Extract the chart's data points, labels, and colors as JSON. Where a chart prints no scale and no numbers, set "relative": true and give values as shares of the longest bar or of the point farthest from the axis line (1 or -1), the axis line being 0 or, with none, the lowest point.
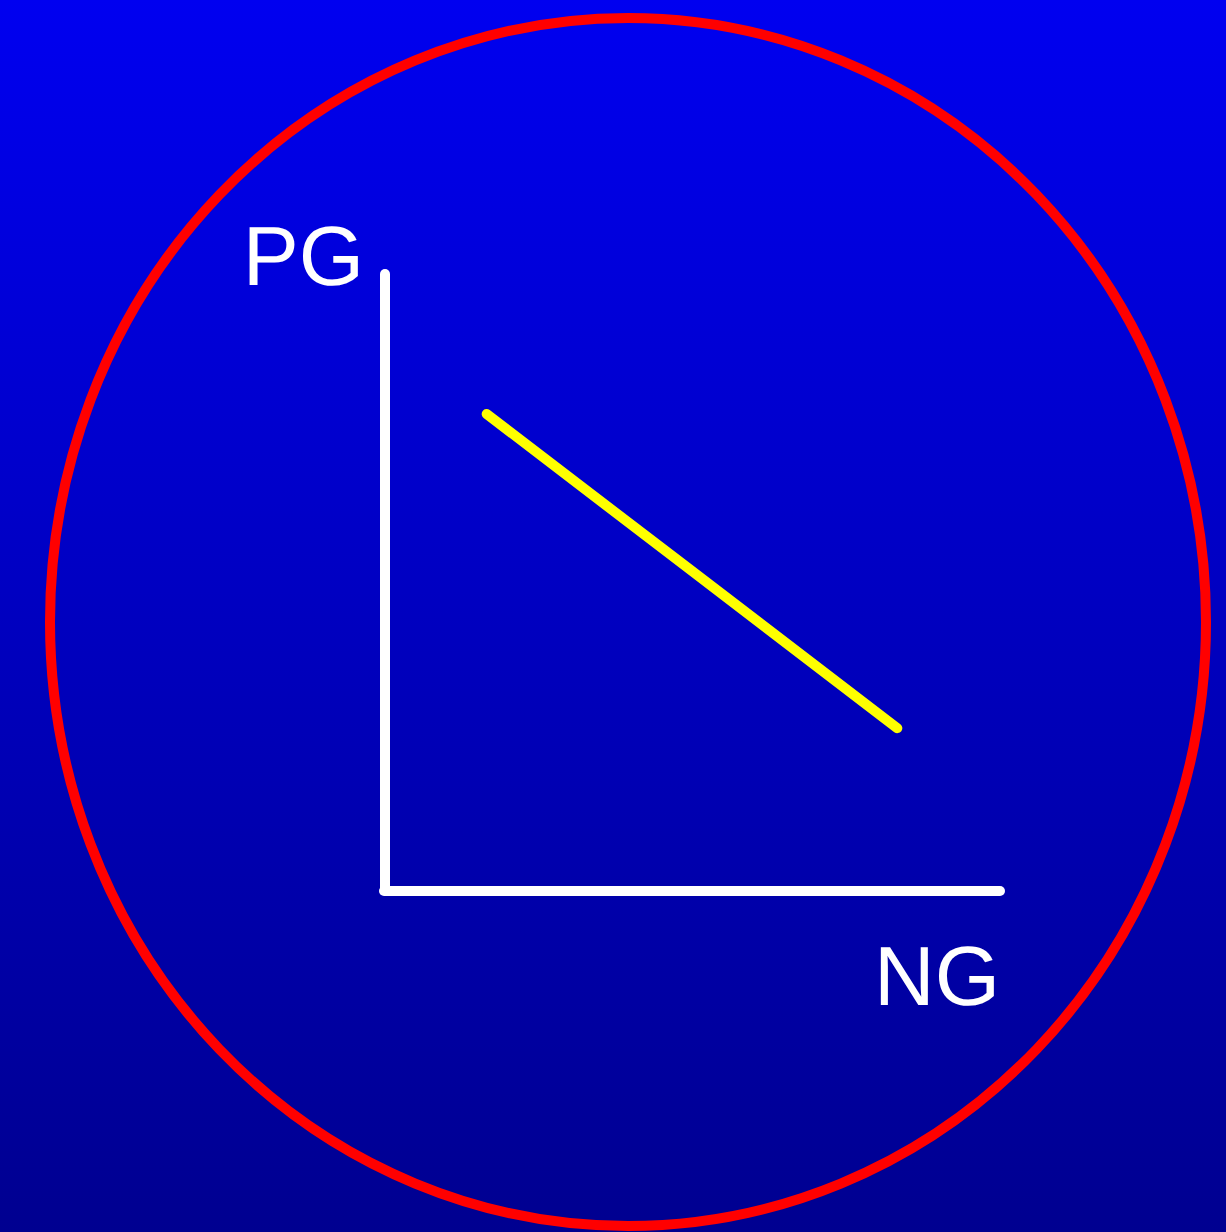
{
  "chart_data": {
    "type": "line",
    "xlabel": "NG",
    "ylabel": "PG",
    "categories": [
      null,
      null,
      null
    ],
    "relative": true,
    "series": [
      {
        "color": "#ffff00",
        "values": [
          1,
          0.67,
          0.34
        ]
      }
    ],
    "grid": false,
    "marker": "none",
    "line_style": "solid"
  }
}
